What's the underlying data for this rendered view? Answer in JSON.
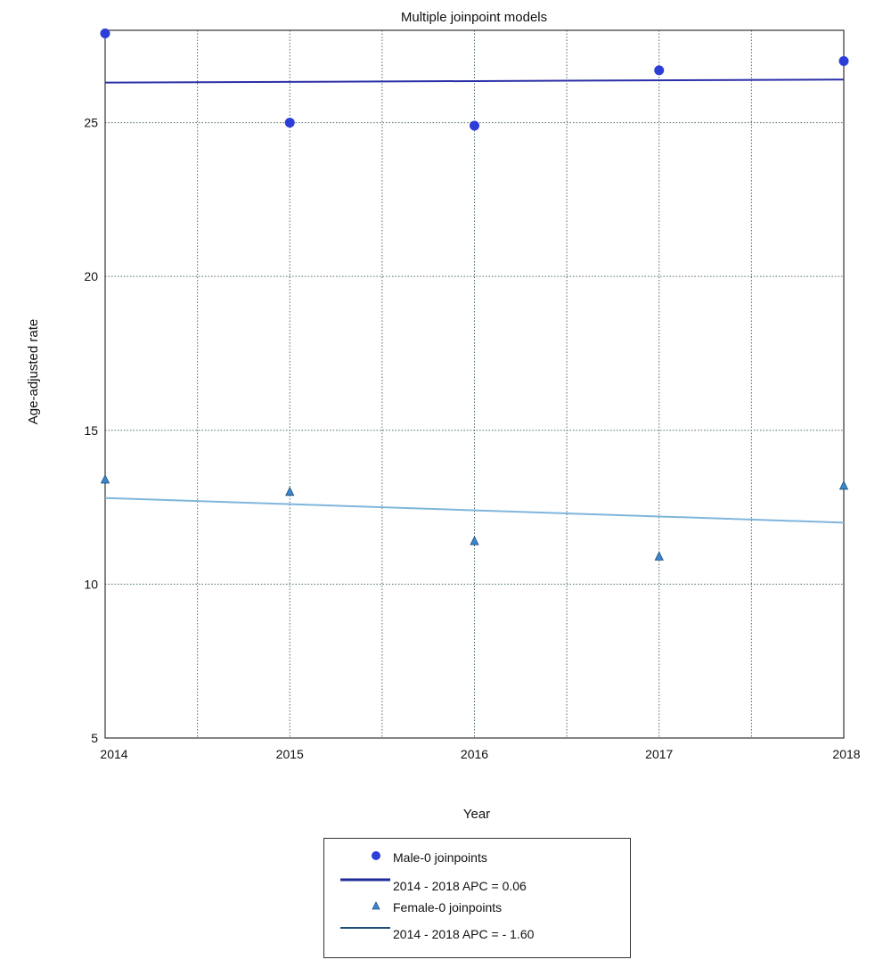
{
  "chart_data": {
    "type": "scatter",
    "title": "Multiple joinpoint models",
    "xlabel": "Year",
    "ylabel": "Age-adjusted rate",
    "xlim": [
      2014,
      2018
    ],
    "ylim": [
      5,
      28
    ],
    "x_ticks": [
      2014,
      2015,
      2016,
      2017,
      2018
    ],
    "y_ticks": [
      5,
      10,
      15,
      20,
      25
    ],
    "grid": true,
    "legend_position": "bottom-center",
    "series": [
      {
        "name": "Male-0 joinpoints",
        "marker": "circle",
        "color": "#2d3ed8",
        "x": [
          2014,
          2015,
          2016,
          2017,
          2018
        ],
        "y": [
          27.9,
          25.0,
          24.9,
          26.7,
          27.0
        ]
      },
      {
        "name": "2014 - 2018 APC = 0.06",
        "kind": "trend-line",
        "color": "#2a2fa8",
        "x": [
          2014,
          2018
        ],
        "y": [
          26.3,
          26.4
        ]
      },
      {
        "name": "Female-0 joinpoints",
        "marker": "triangle",
        "color": "#3b86d0",
        "x": [
          2014,
          2015,
          2016,
          2017,
          2018
        ],
        "y": [
          13.4,
          13.0,
          11.4,
          10.9,
          13.2
        ]
      },
      {
        "name": "2014 - 2018 APC = - 1.60",
        "kind": "trend-line",
        "color": "#7fb6dc",
        "x": [
          2014,
          2018
        ],
        "y": [
          12.8,
          12.0
        ]
      }
    ]
  },
  "legend": {
    "items": [
      {
        "label": "Male-0 joinpoints",
        "symbol": "circle",
        "color": "#2d3ed8"
      },
      {
        "label": "2014 - 2018 APC = 0.06",
        "symbol": "line",
        "color": "#1e2a9a"
      },
      {
        "label": "Female-0 joinpoints",
        "symbol": "triangle",
        "color": "#3b86d0"
      },
      {
        "label": "2014 - 2018 APC = - 1.60",
        "symbol": "line",
        "color": "#1f4f78"
      }
    ]
  }
}
